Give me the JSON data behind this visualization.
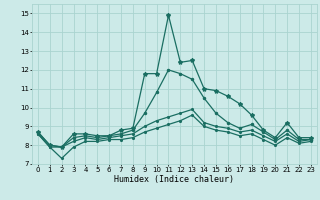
{
  "title": "",
  "xlabel": "Humidex (Indice chaleur)",
  "xlim": [
    -0.5,
    23.5
  ],
  "ylim": [
    7,
    15.5
  ],
  "yticks": [
    7,
    8,
    9,
    10,
    11,
    12,
    13,
    14,
    15
  ],
  "xticks": [
    0,
    1,
    2,
    3,
    4,
    5,
    6,
    7,
    8,
    9,
    10,
    11,
    12,
    13,
    14,
    15,
    16,
    17,
    18,
    19,
    20,
    21,
    22,
    23
  ],
  "background_color": "#cceae8",
  "grid_color": "#aad4d0",
  "line_color": "#1a6e62",
  "series": {
    "max": [
      8.7,
      8.0,
      7.9,
      8.6,
      8.6,
      8.5,
      8.5,
      8.8,
      8.9,
      11.8,
      11.8,
      14.9,
      12.4,
      12.5,
      11.0,
      10.9,
      10.6,
      10.2,
      9.6,
      8.8,
      8.4,
      9.2,
      8.4,
      8.4
    ],
    "mid2": [
      8.7,
      8.0,
      7.9,
      8.4,
      8.5,
      8.4,
      8.5,
      8.6,
      8.8,
      9.7,
      10.8,
      12.0,
      11.8,
      11.5,
      10.5,
      9.7,
      9.2,
      8.9,
      9.1,
      8.7,
      8.3,
      8.8,
      8.3,
      8.3
    ],
    "mid1": [
      8.6,
      7.9,
      7.9,
      8.2,
      8.4,
      8.3,
      8.4,
      8.5,
      8.6,
      9.0,
      9.3,
      9.5,
      9.7,
      9.9,
      9.2,
      9.0,
      8.9,
      8.7,
      8.8,
      8.5,
      8.2,
      8.6,
      8.2,
      8.3
    ],
    "min": [
      8.6,
      7.9,
      7.3,
      7.9,
      8.2,
      8.2,
      8.3,
      8.3,
      8.4,
      8.7,
      8.9,
      9.1,
      9.3,
      9.6,
      9.0,
      8.8,
      8.7,
      8.5,
      8.6,
      8.3,
      8.0,
      8.4,
      8.1,
      8.2
    ]
  }
}
